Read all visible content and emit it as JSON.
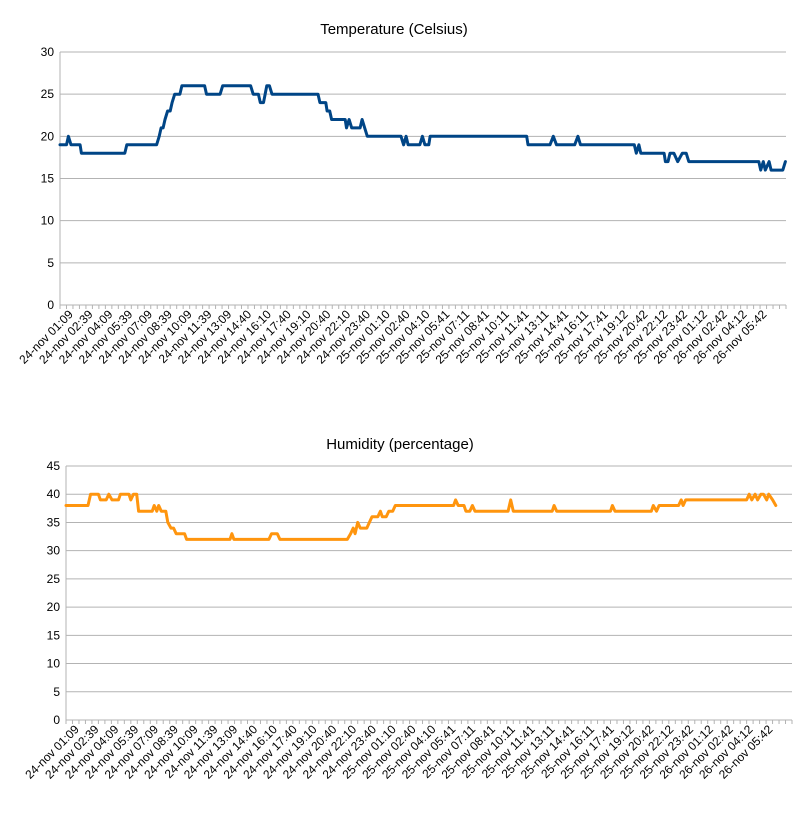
{
  "colors": {
    "temperature": "#004586",
    "humidity": "#ff950e",
    "grid": "#b3b3b3",
    "axis": "#b3b3b3"
  },
  "chart_data": [
    {
      "type": "line",
      "title": "Temperature (Celsius)",
      "xlabel": "",
      "ylabel": "",
      "ylim": [
        0,
        30
      ],
      "yticks": [
        0,
        5,
        10,
        15,
        20,
        25,
        30
      ],
      "grid": true,
      "legend": "none",
      "x_tick_labels": [
        "24-nov 01:09",
        "24-nov 02:39",
        "24-nov 04:09",
        "24-nov 05:39",
        "24-nov 07:09",
        "24-nov 08:39",
        "24-nov 10:09",
        "24-nov 11:39",
        "24-nov 13:09",
        "24-nov 14:40",
        "24-nov 16:10",
        "24-nov 17:40",
        "24-nov 19:10",
        "24-nov 20:40",
        "24-nov 22:10",
        "24-nov 23:40",
        "25-nov 01:10",
        "25-nov 02:40",
        "25-nov 04:10",
        "25-nov 05:41",
        "25-nov 07:11",
        "25-nov 08:41",
        "25-nov 10:11",
        "25-nov 11:41",
        "25-nov 13:11",
        "25-nov 14:41",
        "25-nov 16:11",
        "25-nov 17:41",
        "25-nov 19:12",
        "25-nov 20:42",
        "25-nov 22:12",
        "25-nov 23:42",
        "26-nov 01:12",
        "26-nov 02:42",
        "26-nov 04:12",
        "26-nov 05:42"
      ],
      "series": [
        {
          "color": "#004586",
          "values": [
            [
              0,
              19
            ],
            [
              0.5,
              19
            ],
            [
              1,
              19
            ],
            [
              1.3,
              20
            ],
            [
              1.7,
              19
            ],
            [
              2.6,
              19
            ],
            [
              3.1,
              19
            ],
            [
              3.3,
              18
            ],
            [
              6.0,
              18
            ],
            [
              9.6,
              18
            ],
            [
              10.0,
              18
            ],
            [
              10.3,
              19
            ],
            [
              14.5,
              19
            ],
            [
              14.9,
              19
            ],
            [
              15.3,
              20
            ],
            [
              15.6,
              21
            ],
            [
              15.9,
              21
            ],
            [
              16.2,
              22
            ],
            [
              16.6,
              23
            ],
            [
              17.0,
              23
            ],
            [
              17.3,
              24
            ],
            [
              17.7,
              25
            ],
            [
              18.1,
              25
            ],
            [
              18.5,
              25
            ],
            [
              18.8,
              26
            ],
            [
              20.1,
              26
            ],
            [
              22.3,
              26
            ],
            [
              22.6,
              25
            ],
            [
              23.4,
              25
            ],
            [
              24.7,
              25
            ],
            [
              25.1,
              26
            ],
            [
              27.6,
              26
            ],
            [
              29.4,
              26
            ],
            [
              29.8,
              25
            ],
            [
              30.6,
              25
            ],
            [
              30.9,
              24
            ],
            [
              31.4,
              24
            ],
            [
              31.9,
              26
            ],
            [
              32.3,
              26
            ],
            [
              32.7,
              25
            ],
            [
              37.4,
              25
            ],
            [
              39.8,
              25
            ],
            [
              40.1,
              24
            ],
            [
              40.6,
              24
            ],
            [
              41.0,
              24
            ],
            [
              41.2,
              23
            ],
            [
              41.6,
              23
            ],
            [
              41.9,
              22
            ],
            [
              42.4,
              22
            ],
            [
              44.0,
              22
            ],
            [
              44.2,
              21
            ],
            [
              44.6,
              22
            ],
            [
              45.0,
              21
            ],
            [
              45.5,
              21
            ],
            [
              46.3,
              21
            ],
            [
              46.6,
              22
            ],
            [
              47.0,
              21
            ],
            [
              47.4,
              20
            ],
            [
              52.3,
              20
            ],
            [
              52.6,
              20
            ],
            [
              53.0,
              19
            ],
            [
              53.4,
              20
            ],
            [
              53.7,
              19
            ],
            [
              54.6,
              19
            ],
            [
              55.5,
              19
            ],
            [
              55.9,
              20
            ],
            [
              56.3,
              19
            ],
            [
              56.9,
              19
            ],
            [
              57.1,
              20
            ],
            [
              57.6,
              20
            ],
            [
              59.0,
              20
            ],
            [
              61.8,
              20
            ],
            [
              70.7,
              20
            ],
            [
              72.0,
              20
            ],
            [
              72.2,
              19
            ],
            [
              73.5,
              19
            ],
            [
              75.6,
              19
            ],
            [
              76.1,
              20
            ],
            [
              76.6,
              19
            ],
            [
              79.4,
              19
            ],
            [
              79.9,
              20
            ],
            [
              80.3,
              19
            ],
            [
              82.1,
              19
            ],
            [
              88.6,
              19
            ],
            [
              88.9,
              18
            ],
            [
              89.3,
              19
            ],
            [
              89.6,
              18
            ],
            [
              90.6,
              18
            ],
            [
              93.2,
              18
            ],
            [
              93.4,
              17
            ],
            [
              93.8,
              17
            ],
            [
              94.1,
              18
            ],
            [
              94.7,
              18
            ],
            [
              95.3,
              17
            ],
            [
              96.0,
              18
            ],
            [
              96.6,
              18
            ],
            [
              97.0,
              17
            ],
            [
              99.5,
              17
            ],
            [
              102.4,
              17
            ],
            [
              107.8,
              17
            ],
            [
              108.1,
              16
            ],
            [
              108.5,
              17
            ],
            [
              108.8,
              16
            ],
            [
              109.4,
              17
            ],
            [
              109.7,
              16
            ],
            [
              110.3,
              16
            ],
            [
              111.5,
              16
            ],
            [
              111.9,
              17
            ]
          ]
        }
      ]
    },
    {
      "type": "line",
      "title": "Humidity (percentage)",
      "xlabel": "",
      "ylabel": "",
      "ylim": [
        0,
        45
      ],
      "yticks": [
        0,
        5,
        10,
        15,
        20,
        25,
        30,
        35,
        40,
        45
      ],
      "grid": true,
      "legend": "none",
      "x_tick_labels": [
        "24-nov 01:09",
        "24-nov 02:39",
        "24-nov 04:09",
        "24-nov 05:39",
        "24-nov 07:09",
        "24-nov 08:39",
        "24-nov 10:09",
        "24-nov 11:39",
        "24-nov 13:09",
        "24-nov 14:40",
        "24-nov 16:10",
        "24-nov 17:40",
        "24-nov 19:10",
        "24-nov 20:40",
        "24-nov 22:10",
        "24-nov 23:40",
        "25-nov 01:10",
        "25-nov 02:40",
        "25-nov 04:10",
        "25-nov 05:41",
        "25-nov 07:11",
        "25-nov 08:41",
        "25-nov 10:11",
        "25-nov 11:41",
        "25-nov 13:11",
        "25-nov 14:41",
        "25-nov 16:11",
        "25-nov 17:41",
        "25-nov 19:12",
        "25-nov 20:42",
        "25-nov 22:12",
        "25-nov 23:42",
        "26-nov 01:12",
        "26-nov 02:42",
        "26-nov 04:12",
        "26-nov 05:42"
      ],
      "series": [
        {
          "color": "#ff950e",
          "values": [
            [
              0,
              38
            ],
            [
              3.4,
              38
            ],
            [
              3.8,
              40
            ],
            [
              5.0,
              40
            ],
            [
              5.3,
              39
            ],
            [
              6.2,
              39
            ],
            [
              6.6,
              40
            ],
            [
              7.1,
              39
            ],
            [
              8.1,
              39
            ],
            [
              8.4,
              40
            ],
            [
              9.7,
              40
            ],
            [
              10.0,
              39
            ],
            [
              10.4,
              40
            ],
            [
              10.9,
              40
            ],
            [
              11.2,
              37
            ],
            [
              13.3,
              37
            ],
            [
              13.6,
              38
            ],
            [
              14.0,
              37
            ],
            [
              14.3,
              38
            ],
            [
              14.7,
              37
            ],
            [
              15.4,
              37
            ],
            [
              15.7,
              35
            ],
            [
              16.2,
              34
            ],
            [
              16.6,
              34
            ],
            [
              17.0,
              33
            ],
            [
              18.3,
              33
            ],
            [
              18.6,
              32
            ],
            [
              25.3,
              32
            ],
            [
              25.6,
              33
            ],
            [
              25.9,
              32
            ],
            [
              31.3,
              32
            ],
            [
              31.7,
              33
            ],
            [
              32.6,
              33
            ],
            [
              33.0,
              32
            ],
            [
              41.0,
              32
            ],
            [
              43.4,
              32
            ],
            [
              43.9,
              33
            ],
            [
              44.3,
              34
            ],
            [
              44.6,
              33
            ],
            [
              45.0,
              35
            ],
            [
              45.4,
              34
            ],
            [
              46.4,
              34
            ],
            [
              46.8,
              35
            ],
            [
              47.2,
              36
            ],
            [
              48.1,
              36
            ],
            [
              48.5,
              37
            ],
            [
              48.8,
              36
            ],
            [
              49.4,
              36
            ],
            [
              49.8,
              37
            ],
            [
              50.4,
              37
            ],
            [
              50.8,
              38
            ],
            [
              54.9,
              38
            ],
            [
              59.8,
              38
            ],
            [
              60.1,
              39
            ],
            [
              60.5,
              38
            ],
            [
              61.4,
              38
            ],
            [
              61.7,
              37
            ],
            [
              62.3,
              37
            ],
            [
              62.7,
              38
            ],
            [
              63.1,
              37
            ],
            [
              64.0,
              37
            ],
            [
              68.2,
              37
            ],
            [
              68.6,
              39
            ],
            [
              69.0,
              37
            ],
            [
              72.0,
              37
            ],
            [
              75.0,
              37
            ],
            [
              75.3,
              38
            ],
            [
              75.7,
              37
            ],
            [
              84.0,
              37
            ],
            [
              84.3,
              38
            ],
            [
              84.7,
              37
            ],
            [
              90.3,
              37
            ],
            [
              90.6,
              38
            ],
            [
              91.1,
              37
            ],
            [
              91.5,
              38
            ],
            [
              94.5,
              38
            ],
            [
              94.9,
              39
            ],
            [
              95.2,
              38
            ],
            [
              95.6,
              39
            ],
            [
              102.0,
              39
            ],
            [
              105.0,
              39
            ],
            [
              105.4,
              40
            ],
            [
              105.8,
              39
            ],
            [
              106.3,
              40
            ],
            [
              106.7,
              39
            ],
            [
              107.2,
              40
            ],
            [
              107.6,
              40
            ],
            [
              108.1,
              39
            ],
            [
              108.4,
              40
            ],
            [
              109.0,
              39
            ],
            [
              109.5,
              38
            ]
          ]
        }
      ]
    }
  ]
}
